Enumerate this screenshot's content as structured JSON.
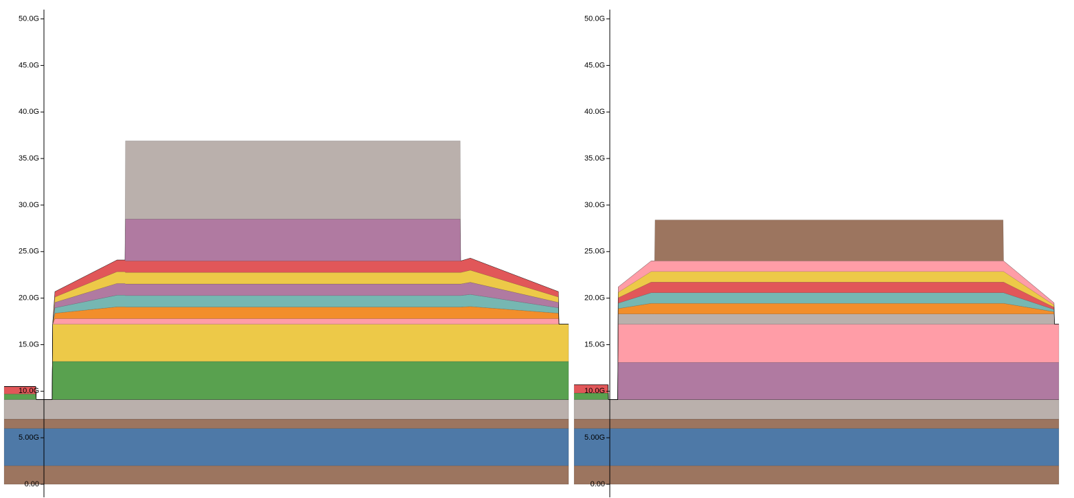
{
  "chart_data": [
    {
      "type": "stacked-area",
      "x": [
        0,
        5.6,
        5.7,
        8.5,
        8.6,
        9.0,
        20,
        21.4,
        21.5,
        80.8,
        80.9,
        82.6,
        98.2,
        98.3,
        100
      ],
      "xlim": [
        0,
        100
      ],
      "ylim": [
        -1.4,
        51
      ],
      "yticks": [
        {
          "value": 0,
          "label": "0.00"
        },
        {
          "value": 5,
          "label": "5.00G"
        },
        {
          "value": 10,
          "label": "10.0G"
        },
        {
          "value": 15,
          "label": "15.0G"
        },
        {
          "value": 20,
          "label": "20.0G"
        },
        {
          "value": 25,
          "label": "25.0G"
        },
        {
          "value": 30,
          "label": "30.0G"
        },
        {
          "value": 35,
          "label": "35.0G"
        },
        {
          "value": 40,
          "label": "40.0G"
        },
        {
          "value": 45,
          "label": "45.0G"
        },
        {
          "value": 50,
          "label": "50.0G"
        }
      ],
      "series": [
        {
          "color": "#9c755f",
          "values": [
            2,
            2,
            2,
            2,
            2,
            2,
            2,
            2,
            2,
            2,
            2,
            2,
            2,
            2,
            2
          ]
        },
        {
          "color": "#4e79a7",
          "values": [
            4,
            4,
            4,
            4,
            4,
            4,
            4,
            4,
            4,
            4,
            4,
            4,
            4,
            4,
            4
          ]
        },
        {
          "color": "#9c755f",
          "values": [
            1,
            1,
            1,
            1,
            1,
            1,
            1,
            1,
            1,
            1,
            1,
            1,
            1,
            1,
            1
          ]
        },
        {
          "color": "#bab0ac",
          "values": [
            2.1,
            2.1,
            2.1,
            2.1,
            2.1,
            2.1,
            2.1,
            2.1,
            2.1,
            2.1,
            2.1,
            2.1,
            2.1,
            2.1,
            2.1
          ]
        },
        {
          "color": "#59a14f",
          "values": [
            0.6,
            0.6,
            0,
            0,
            0,
            0,
            0,
            0,
            0,
            0,
            0,
            0,
            0,
            0,
            0
          ]
        },
        {
          "color": "#e15759",
          "values": [
            0.8,
            0.8,
            0,
            0,
            0,
            0,
            0,
            0,
            0,
            0,
            0,
            0,
            0,
            0,
            0
          ]
        },
        {
          "color": "#59a14f",
          "values": [
            0,
            0,
            0,
            0,
            4.1,
            4.1,
            4.1,
            4.1,
            4.1,
            4.1,
            4.1,
            4.1,
            4.1,
            4.1,
            4.1
          ]
        },
        {
          "color": "#edc948",
          "values": [
            0,
            0,
            0,
            0,
            4.0,
            4.0,
            4.0,
            4.0,
            4.0,
            4.0,
            4.0,
            4.0,
            4.0,
            4.0,
            4.0
          ]
        },
        {
          "color": "#ff9da7",
          "values": [
            0,
            0,
            0,
            0,
            0,
            0.6,
            0.6,
            0.6,
            0.6,
            0.6,
            0.6,
            0.6,
            0.6,
            0,
            0
          ]
        },
        {
          "color": "#f28e2b",
          "values": [
            0,
            0,
            0,
            0,
            0,
            0.58,
            1.26,
            1.26,
            1.24,
            1.24,
            1.24,
            1.3,
            0.58,
            0,
            0
          ]
        },
        {
          "color": "#76b7b2",
          "values": [
            0,
            0,
            0,
            0,
            0,
            0.58,
            1.26,
            1.26,
            1.24,
            1.24,
            1.24,
            1.3,
            0.58,
            0,
            0
          ]
        },
        {
          "color": "#b07aa1",
          "values": [
            0,
            0,
            0,
            0,
            0,
            0.58,
            1.26,
            1.26,
            1.24,
            1.24,
            1.24,
            1.3,
            0.58,
            0,
            0
          ]
        },
        {
          "color": "#edc948",
          "values": [
            0,
            0,
            0,
            0,
            0,
            0.58,
            1.26,
            1.26,
            1.24,
            1.24,
            1.24,
            1.3,
            0.58,
            0,
            0
          ]
        },
        {
          "color": "#e15759",
          "values": [
            0,
            0,
            0,
            0,
            0,
            0.58,
            1.26,
            1.26,
            1.24,
            1.24,
            1.24,
            1.3,
            0.58,
            0,
            0
          ]
        },
        {
          "color": "#b07aa1",
          "values": [
            0,
            0,
            0,
            0,
            0,
            0,
            0,
            0,
            4.5,
            4.5,
            0,
            0,
            0,
            0,
            0
          ]
        },
        {
          "color": "#bab0ac",
          "values": [
            0,
            0,
            0,
            0,
            0,
            0,
            0,
            0,
            8.4,
            8.4,
            0,
            0,
            0,
            0,
            0
          ]
        }
      ]
    },
    {
      "type": "stacked-area",
      "x": [
        0,
        7,
        7.1,
        9.0,
        9.1,
        15.9,
        16.6,
        16.7,
        88.5,
        88.6,
        99,
        99.1,
        100
      ],
      "xlim": [
        0,
        100
      ],
      "ylim": [
        -1.4,
        51
      ],
      "yticks": [
        {
          "value": 0,
          "label": "0.00"
        },
        {
          "value": 5,
          "label": "5.00G"
        },
        {
          "value": 10,
          "label": "10.0G"
        },
        {
          "value": 15,
          "label": "15.0G"
        },
        {
          "value": 20,
          "label": "20.0G"
        },
        {
          "value": 25,
          "label": "25.0G"
        },
        {
          "value": 30,
          "label": "30.0G"
        },
        {
          "value": 35,
          "label": "35.0G"
        },
        {
          "value": 40,
          "label": "40.0G"
        },
        {
          "value": 45,
          "label": "45.0G"
        },
        {
          "value": 50,
          "label": "50.0G"
        }
      ],
      "series": [
        {
          "color": "#9c755f",
          "values": [
            2,
            2,
            2,
            2,
            2,
            2,
            2,
            2,
            2,
            2,
            2,
            2,
            2
          ]
        },
        {
          "color": "#4e79a7",
          "values": [
            4,
            4,
            4,
            4,
            4,
            4,
            4,
            4,
            4,
            4,
            4,
            4,
            4
          ]
        },
        {
          "color": "#9c755f",
          "values": [
            1,
            1,
            1,
            1,
            1,
            1,
            1,
            1,
            1,
            1,
            1,
            1,
            1
          ]
        },
        {
          "color": "#bab0ac",
          "values": [
            2.1,
            2.1,
            2.1,
            2.1,
            2.1,
            2.1,
            2.1,
            2.1,
            2.1,
            2.1,
            2.1,
            2.1,
            2.1
          ]
        },
        {
          "color": "#59a14f",
          "values": [
            0.7,
            0.7,
            0,
            0,
            0,
            0,
            0,
            0,
            0,
            0,
            0,
            0,
            0
          ]
        },
        {
          "color": "#e15759",
          "values": [
            0.9,
            0.9,
            0,
            0,
            0,
            0,
            0,
            0,
            0,
            0,
            0,
            0,
            0
          ]
        },
        {
          "color": "#b07aa1",
          "values": [
            0,
            0,
            0,
            0,
            4.0,
            4.0,
            4.0,
            4.0,
            4.0,
            4.0,
            4.0,
            4.0,
            4.0
          ]
        },
        {
          "color": "#ff9da7",
          "values": [
            0,
            0,
            0,
            0,
            4.1,
            4.1,
            4.1,
            4.1,
            4.1,
            4.1,
            4.1,
            4.1,
            4.1
          ]
        },
        {
          "color": "#bab0ac",
          "values": [
            0,
            0,
            0,
            0,
            1.1,
            1.1,
            1.1,
            1.1,
            1.1,
            1.1,
            1.1,
            0,
            0
          ]
        },
        {
          "color": "#f28e2b",
          "values": [
            0,
            0,
            0,
            0,
            0.58,
            1.14,
            1.14,
            1.14,
            1.14,
            1.14,
            0.24,
            0,
            0
          ]
        },
        {
          "color": "#76b7b2",
          "values": [
            0,
            0,
            0,
            0,
            0.58,
            1.14,
            1.14,
            1.14,
            1.14,
            1.14,
            0.24,
            0,
            0
          ]
        },
        {
          "color": "#e15759",
          "values": [
            0,
            0,
            0,
            0,
            0.58,
            1.14,
            1.14,
            1.14,
            1.14,
            1.14,
            0.24,
            0,
            0
          ]
        },
        {
          "color": "#edc948",
          "values": [
            0,
            0,
            0,
            0,
            0.58,
            1.14,
            1.14,
            1.14,
            1.14,
            1.14,
            0.24,
            0,
            0
          ]
        },
        {
          "color": "#ff9da7",
          "values": [
            0,
            0,
            0,
            0,
            0.58,
            1.14,
            1.14,
            1.14,
            1.14,
            1.14,
            0.24,
            0,
            0
          ]
        },
        {
          "color": "#9c755f",
          "values": [
            0,
            0,
            0,
            0,
            0,
            0,
            0,
            4.4,
            4.4,
            0,
            0,
            0,
            0
          ]
        }
      ]
    }
  ]
}
